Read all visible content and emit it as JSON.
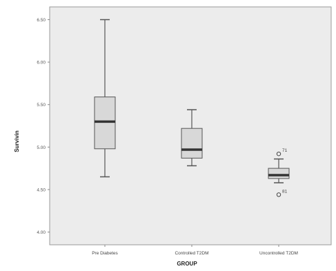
{
  "chart_data": {
    "type": "box",
    "xlabel": "GROUP",
    "ylabel": "Survivin",
    "ylim": [
      3.85,
      6.65
    ],
    "yticks": [
      4.0,
      4.5,
      5.0,
      5.5,
      6.0,
      6.5
    ],
    "ytick_labels": [
      "4.00",
      "4.50",
      "5.00",
      "5.50",
      "6.00",
      "6.50"
    ],
    "categories": [
      "Pre Diabetes",
      "Controlled T2DM",
      "Uncontrolled T2DM"
    ],
    "boxes": [
      {
        "category": "Pre Diabetes",
        "min": 4.65,
        "q1": 4.98,
        "median": 5.3,
        "q3": 5.59,
        "max": 6.5
      },
      {
        "category": "Controlled T2DM",
        "min": 4.78,
        "q1": 4.87,
        "median": 4.97,
        "q3": 5.22,
        "max": 5.44
      },
      {
        "category": "Uncontrolled T2DM",
        "min": 4.58,
        "q1": 4.63,
        "median": 4.67,
        "q3": 4.75,
        "max": 4.86
      }
    ],
    "outliers": [
      {
        "category": "Uncontrolled T2DM",
        "value": 4.92,
        "label": "71"
      },
      {
        "category": "Uncontrolled T2DM",
        "value": 4.44,
        "label": "81"
      }
    ],
    "grid": false,
    "colors": {
      "plot_bg": "#ececec",
      "box_fill": "#d8d8d8",
      "box_stroke": "#555555",
      "median": "#333333",
      "whisker": "#555555",
      "frame": "#888888"
    }
  }
}
